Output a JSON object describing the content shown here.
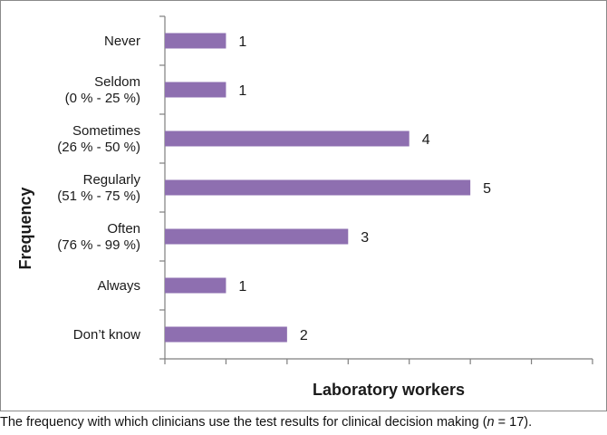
{
  "chart_data": {
    "type": "bar",
    "orientation": "horizontal",
    "categories": [
      [
        "Never"
      ],
      [
        "Seldom",
        "(0 % - 25 %)"
      ],
      [
        "Sometimes",
        "(26 % - 50 %)"
      ],
      [
        "Regularly",
        "(51 % - 75 %)"
      ],
      [
        "Often",
        "(76 % - 99 %)"
      ],
      [
        "Always"
      ],
      [
        "Don’t know"
      ]
    ],
    "values": [
      1,
      1,
      4,
      5,
      3,
      1,
      2
    ],
    "xlabel": "Laboratory workers",
    "ylabel": "Frequency",
    "xlim": [
      0,
      7
    ],
    "grid": false,
    "bar_color": "#8e6fb0"
  },
  "caption": {
    "before": "The frequency with which clinicians use the test results for clinical decision making (",
    "n_symbol": "n",
    "after": " = 17)."
  }
}
